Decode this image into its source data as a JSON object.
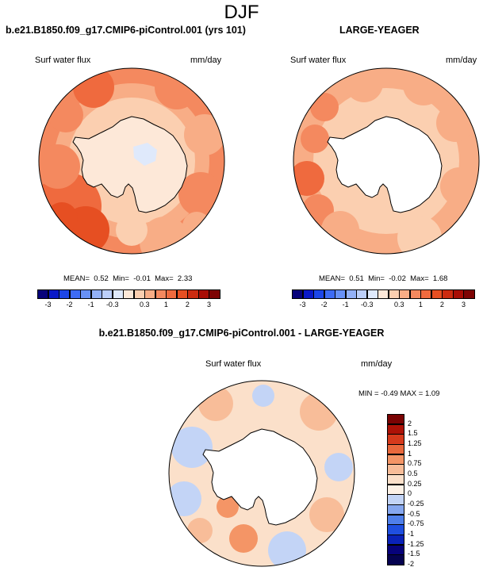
{
  "main_title": "DJF",
  "palette": {
    "vneg": [
      "#07027a",
      "#0a19c8",
      "#1c46e8",
      "#3e6cf4",
      "#6891f6",
      "#93b1f7",
      "#bccff9",
      "#dfe9fb"
    ],
    "vpos": [
      "#fde8d8",
      "#fbcfb0",
      "#f8ad86",
      "#f4895f",
      "#ef6a3e",
      "#e64f22",
      "#cc2b10",
      "#a80d05",
      "#7d0303"
    ],
    "hneg": [
      "#07027a",
      "#0a22b8",
      "#1f4fe0",
      "#4f7fea",
      "#86a7ef",
      "#c3d4f6"
    ],
    "hpos": [
      "#fbe0ca",
      "#f8bd99",
      "#f49566",
      "#e9683c",
      "#d63a1c",
      "#ad1207",
      "#7a0303"
    ]
  },
  "chart_data": [
    {
      "type": "heatmap",
      "projection": "south-polar-stereographic",
      "title": "b.e21.B1850.f09_g17.CMIP6-piControl.001 (yrs 101)",
      "left_label": "Surf water flux",
      "right_label": "mm/day",
      "stats": {
        "mean_label": "MEAN=",
        "mean": "0.52",
        "min_label": "Min=",
        "min": "-0.01",
        "max_label": "Max=",
        "max": "2.33"
      },
      "colorbar_ticks": [
        "-3",
        "-2",
        "-1",
        "-0.3",
        "0.3",
        "1",
        "2",
        "3"
      ],
      "mean": 0.52,
      "min": -0.01,
      "max": 2.33
    },
    {
      "type": "heatmap",
      "projection": "south-polar-stereographic",
      "title": "LARGE-YEAGER",
      "left_label": "Surf water flux",
      "right_label": "mm/day",
      "stats": {
        "mean_label": "MEAN=",
        "mean": "0.51",
        "min_label": "Min=",
        "min": "-0.02",
        "max_label": "Max=",
        "max": "1.68"
      },
      "colorbar_ticks": [
        "-3",
        "-2",
        "-1",
        "-0.3",
        "0.3",
        "1",
        "2",
        "3"
      ],
      "mean": 0.51,
      "min": -0.02,
      "max": 1.68
    },
    {
      "type": "heatmap",
      "projection": "south-polar-stereographic",
      "title": "b.e21.B1850.f09_g17.CMIP6-piControl.001 - LARGE-YEAGER",
      "left_label": "Surf water flux",
      "right_label": "mm/day",
      "stats": {
        "min_label": "MIN =",
        "min": "-0.49",
        "max_label": "MAX =",
        "max": "1.09"
      },
      "colorbar_ticks": [
        "2",
        "1.5",
        "1.25",
        "1",
        "0.75",
        "0.5",
        "0.25",
        "0",
        "-0.25",
        "-0.5",
        "-0.75",
        "-1",
        "-1.25",
        "-1.5",
        "-2"
      ],
      "min": -0.49,
      "max": 1.09
    }
  ]
}
